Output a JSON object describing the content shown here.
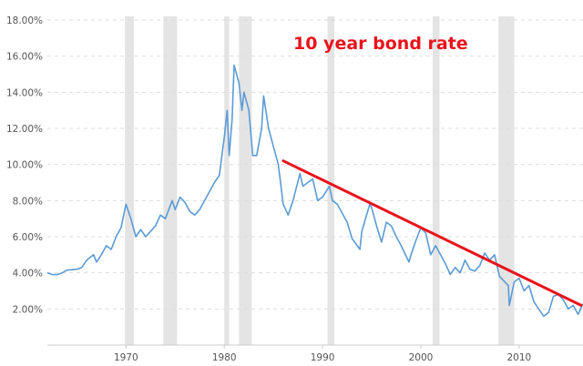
{
  "chart_data": {
    "type": "line",
    "title": "10 year bond rate",
    "title_color": "#e8141c",
    "line_color": "#5b9bd5",
    "trend_color": "#e8141c",
    "recession_color": "#e4e4e4",
    "grid": true,
    "xlim": [
      1962,
      2016.5
    ],
    "ylim": [
      0,
      18
    ],
    "x_ticks": [
      {
        "value": 1970,
        "label": "1970"
      },
      {
        "value": 1980,
        "label": "1980"
      },
      {
        "value": 1990,
        "label": "1990"
      },
      {
        "value": 2000,
        "label": "2000"
      },
      {
        "value": 2010,
        "label": "2010"
      }
    ],
    "y_ticks": [
      {
        "value": 2,
        "label": "2.00%"
      },
      {
        "value": 4,
        "label": "4.00%"
      },
      {
        "value": 6,
        "label": "6.00%"
      },
      {
        "value": 8,
        "label": "8.00%"
      },
      {
        "value": 10,
        "label": "10.00%"
      },
      {
        "value": 12,
        "label": "12.00%"
      },
      {
        "value": 14,
        "label": "14.00%"
      },
      {
        "value": 16,
        "label": "16.00%"
      },
      {
        "value": 18,
        "label": "18.00%"
      }
    ],
    "recessions": [
      [
        1969.9,
        1970.8
      ],
      [
        1973.8,
        1975.2
      ],
      [
        1980.0,
        1980.5
      ],
      [
        1981.5,
        1982.8
      ],
      [
        1990.5,
        1991.2
      ],
      [
        2001.2,
        2001.9
      ],
      [
        2007.9,
        2009.5
      ]
    ],
    "series": [
      {
        "x": [
          1962.0,
          1962.5,
          1963.0,
          1963.5,
          1964.0,
          1965.0,
          1965.5,
          1966.0,
          1966.7,
          1967.0,
          1967.5,
          1968.0,
          1968.5,
          1969.0,
          1969.5,
          1970.0,
          1970.5,
          1971.0,
          1971.5,
          1972.0,
          1972.5,
          1973.0,
          1973.5,
          1974.0,
          1974.7,
          1975.0,
          1975.5,
          1976.0,
          1976.5,
          1977.0,
          1977.5,
          1978.0,
          1978.5,
          1979.0,
          1979.5,
          1980.0,
          1980.3,
          1980.5,
          1980.8,
          1981.0,
          1981.5,
          1981.8,
          1982.0,
          1982.5,
          1982.9,
          1983.3,
          1983.8,
          1984.0,
          1984.5,
          1985.0,
          1985.5,
          1986.0,
          1986.5,
          1987.0,
          1987.7,
          1988.0,
          1988.5,
          1989.0,
          1989.5,
          1990.0,
          1990.7,
          1991.0,
          1991.5,
          1992.0,
          1992.5,
          1993.0,
          1993.8,
          1994.0,
          1994.8,
          1995.0,
          1995.5,
          1996.0,
          1996.5,
          1997.0,
          1997.5,
          1998.0,
          1998.8,
          1999.0,
          1999.5,
          2000.0,
          2000.5,
          2001.0,
          2001.5,
          2002.0,
          2002.5,
          2003.0,
          2003.5,
          2004.0,
          2004.5,
          2005.0,
          2005.5,
          2006.0,
          2006.5,
          2007.0,
          2007.5,
          2008.0,
          2008.9,
          2009.0,
          2009.5,
          2010.0,
          2010.5,
          2011.0,
          2011.5,
          2012.0,
          2012.5,
          2013.0,
          2013.5,
          2014.0,
          2014.5,
          2015.0,
          2015.5,
          2016.0,
          2016.5
        ],
        "y": [
          4.0,
          3.9,
          3.9,
          4.0,
          4.15,
          4.2,
          4.3,
          4.7,
          5.0,
          4.6,
          5.0,
          5.5,
          5.3,
          6.0,
          6.5,
          7.8,
          7.0,
          6.0,
          6.4,
          6.0,
          6.3,
          6.6,
          7.2,
          7.0,
          8.0,
          7.5,
          8.2,
          7.9,
          7.4,
          7.2,
          7.5,
          8.0,
          8.5,
          9.0,
          9.4,
          11.5,
          13.0,
          10.5,
          12.5,
          15.5,
          14.5,
          13.0,
          14.0,
          13.0,
          10.5,
          10.5,
          12.0,
          13.8,
          12.0,
          11.0,
          10.0,
          7.8,
          7.2,
          8.0,
          9.5,
          8.8,
          9.0,
          9.2,
          8.0,
          8.2,
          8.8,
          8.0,
          7.8,
          7.3,
          6.8,
          5.9,
          5.3,
          6.3,
          7.8,
          7.6,
          6.6,
          5.7,
          6.8,
          6.6,
          6.0,
          5.5,
          4.6,
          5.0,
          5.8,
          6.5,
          6.2,
          5.0,
          5.5,
          5.0,
          4.5,
          3.9,
          4.3,
          4.0,
          4.7,
          4.2,
          4.1,
          4.4,
          5.1,
          4.7,
          5.0,
          3.8,
          3.3,
          2.2,
          3.5,
          3.7,
          3.0,
          3.3,
          2.4,
          2.0,
          1.6,
          1.8,
          2.7,
          2.8,
          2.5,
          2.0,
          2.2,
          1.7,
          2.3
        ]
      }
    ],
    "trendline": {
      "x": [
        1986.0,
        2016.5
      ],
      "y": [
        10.2,
        2.2
      ]
    }
  }
}
